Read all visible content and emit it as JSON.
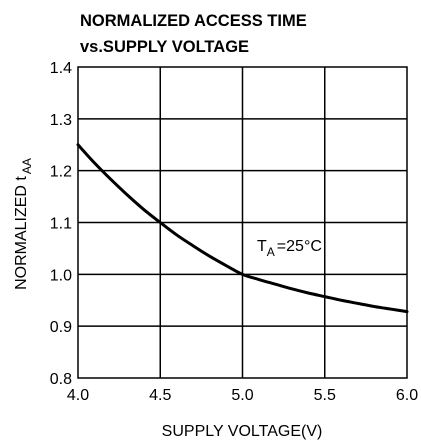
{
  "chart_data": {
    "type": "line",
    "title_line1": "NORMALIZED ACCESS TIME",
    "title_line2": "vs.SUPPLY VOLTAGE",
    "xlabel": "SUPPLY VOLTAGE(V)",
    "ylabel_main": "NORMALIZED t",
    "ylabel_sub": "AA",
    "xlim": [
      4.0,
      6.0
    ],
    "ylim": [
      0.8,
      1.4
    ],
    "x_ticks": [
      "4.0",
      "4.5",
      "5.0",
      "5.5",
      "6.0"
    ],
    "y_ticks": [
      "0.8",
      "0.9",
      "1.0",
      "1.1",
      "1.2",
      "1.3",
      "1.4"
    ],
    "grid": true,
    "annotation_main": "T",
    "annotation_sub": "A",
    "annotation_tail": "=25°C",
    "series": [
      {
        "x": [
          4.0,
          4.1,
          4.2,
          4.3,
          4.4,
          4.5,
          4.6,
          4.7,
          4.8,
          4.9,
          5.0,
          5.1,
          5.2,
          5.3,
          5.4,
          5.5,
          5.6,
          5.7,
          5.8,
          5.9,
          6.0
        ],
        "y": [
          1.25,
          1.215,
          1.183,
          1.153,
          1.125,
          1.1,
          1.076,
          1.055,
          1.035,
          1.017,
          1.0,
          0.99,
          0.981,
          0.972,
          0.964,
          0.957,
          0.95,
          0.944,
          0.938,
          0.933,
          0.928
        ]
      }
    ]
  }
}
